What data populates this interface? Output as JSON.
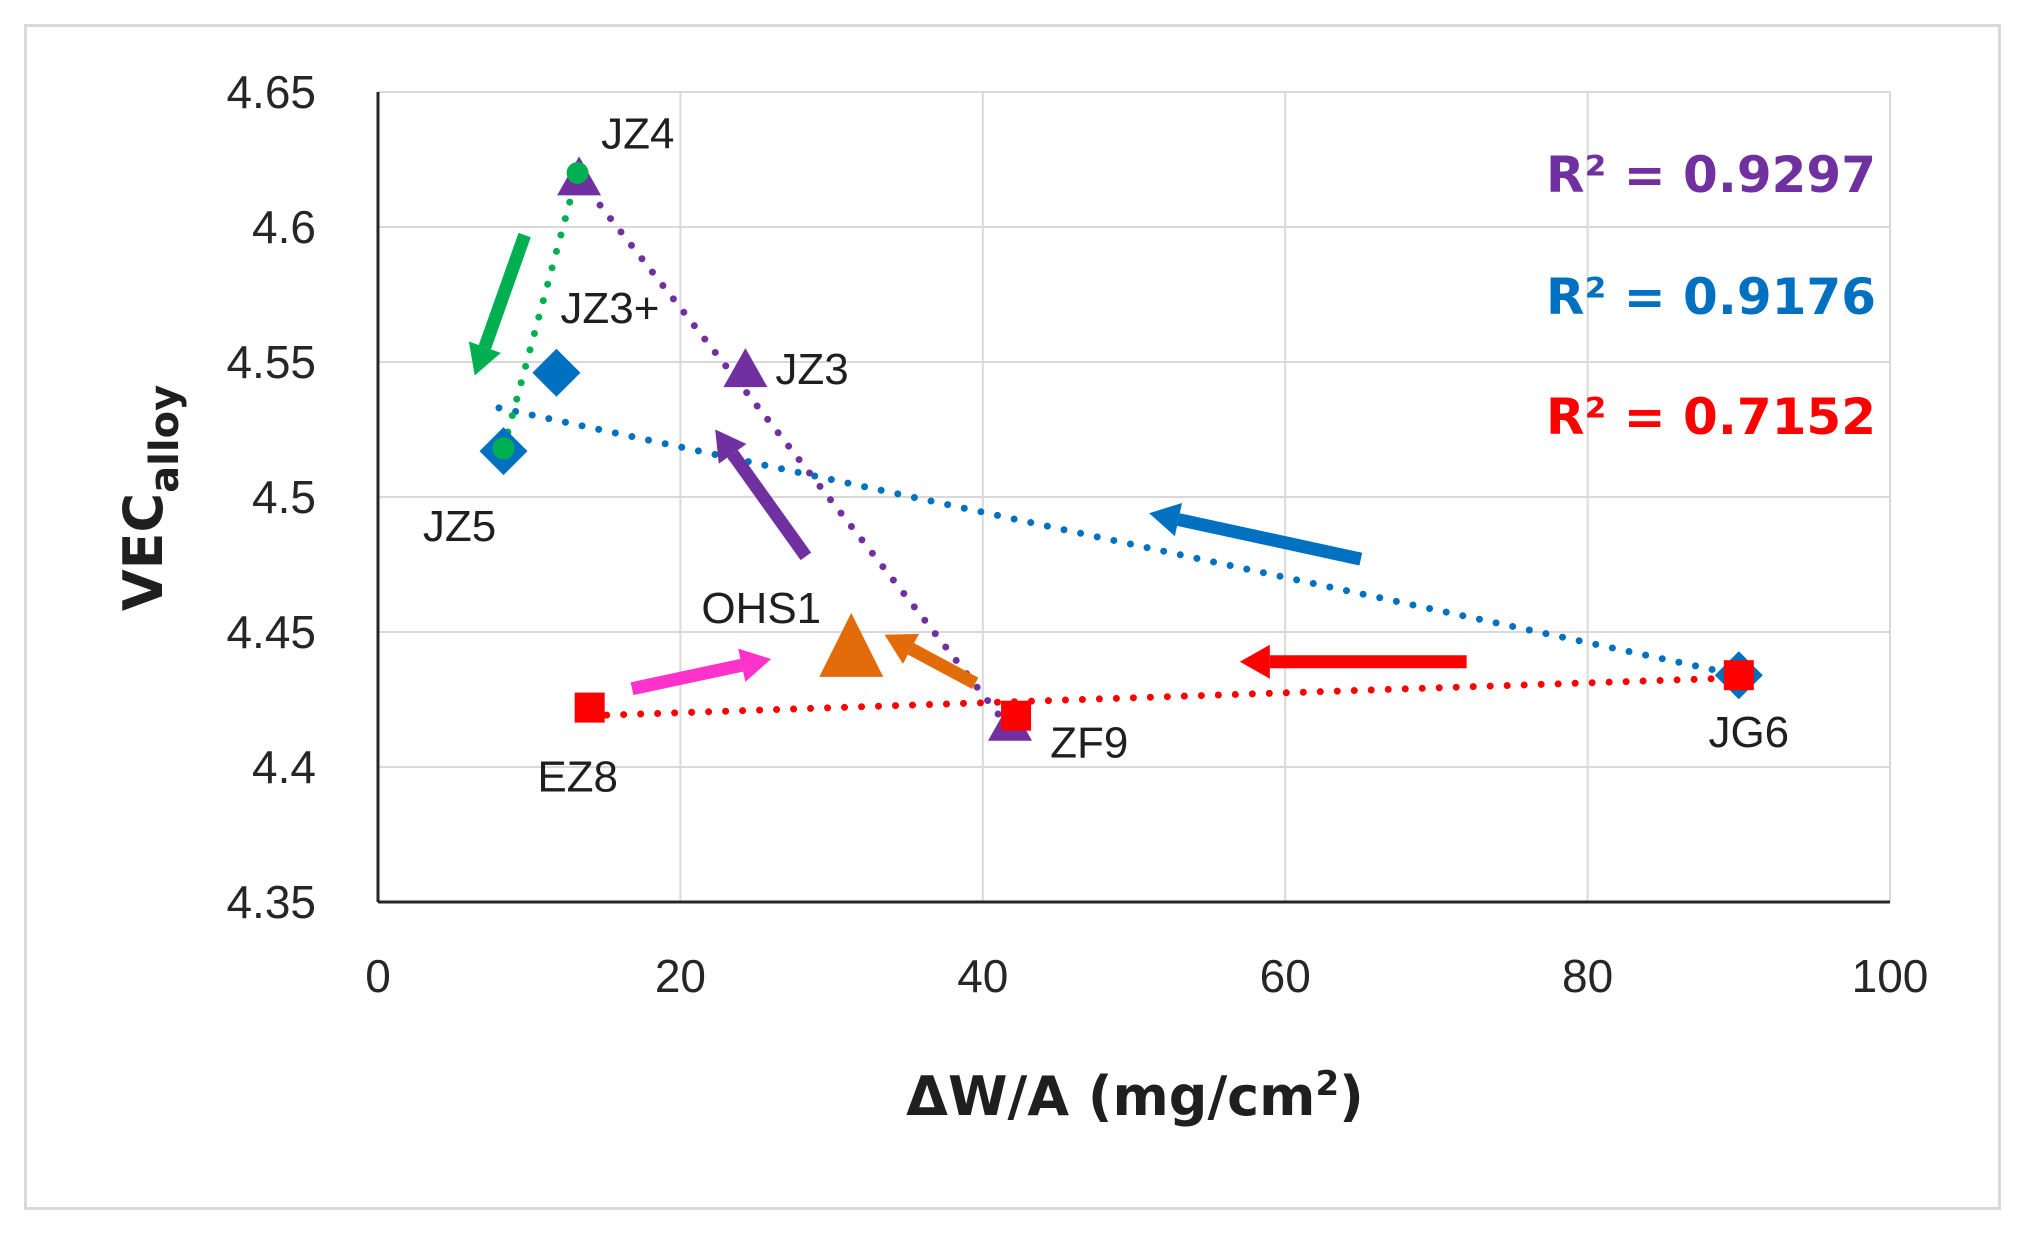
{
  "chart_data": {
    "type": "scatter",
    "xlabel": "ΔW/A (mg/cm",
    "xlabel_sup": "2",
    "xlabel_tail": ")",
    "ylabel": "VEC",
    "ylabel_sub": "alloy",
    "xlim": [
      0,
      100
    ],
    "ylim": [
      4.35,
      4.65
    ],
    "x_ticks": [
      "0",
      "20",
      "40",
      "60",
      "80",
      "100"
    ],
    "y_ticks": [
      "4.35",
      "4.4",
      "4.45",
      "4.5",
      "4.55",
      "4.6",
      "4.65"
    ],
    "x_tick_values": [
      0,
      20,
      40,
      60,
      80,
      100
    ],
    "y_tick_values": [
      4.35,
      4.4,
      4.45,
      4.5,
      4.55,
      4.6,
      4.65
    ],
    "grid": "vertical and horizontal",
    "series": [
      {
        "color": "#7030a0",
        "marker": "triangle",
        "trend": "dotted",
        "points": [
          {
            "x": 13.3,
            "y": 4.618
          },
          {
            "x": 24.3,
            "y": 4.547
          },
          {
            "x": 41.8,
            "y": 4.416
          }
        ]
      },
      {
        "color": "#0070c0",
        "marker": "diamond",
        "trend": "dotted",
        "points": [
          {
            "x": 8.3,
            "y": 4.517
          },
          {
            "x": 11.8,
            "y": 4.546
          },
          {
            "x": 90,
            "y": 4.434
          }
        ]
      },
      {
        "color": "#ff0000",
        "marker": "square",
        "trend": "dotted",
        "points": [
          {
            "x": 14,
            "y": 4.422
          },
          {
            "x": 42.2,
            "y": 4.419
          },
          {
            "x": 90,
            "y": 4.434
          }
        ]
      },
      {
        "color": "#00b050",
        "marker": "circle",
        "trend": "dotted",
        "points": [
          {
            "x": 8.3,
            "y": 4.518
          },
          {
            "x": 13.2,
            "y": 4.62
          }
        ]
      },
      {
        "color": "#e36c0a",
        "marker": "triangle-large",
        "points": [
          {
            "x": 31.3,
            "y": 4.443
          }
        ]
      }
    ],
    "trendlines": [
      {
        "color": "#7030a0",
        "from": [
          13.3,
          4.618
        ],
        "to": [
          41.8,
          4.414
        ]
      },
      {
        "color": "#0070c0",
        "from": [
          8,
          4.533
        ],
        "to": [
          90,
          4.434
        ]
      },
      {
        "color": "#ff0000",
        "from": [
          14,
          4.419
        ],
        "to": [
          90,
          4.433
        ]
      },
      {
        "color": "#00b050",
        "from": [
          8.3,
          4.518
        ],
        "to": [
          13.2,
          4.62
        ]
      }
    ],
    "point_labels": [
      {
        "text": "JZ4",
        "x": 13.3,
        "y": 4.618
      },
      {
        "text": "JZ3+",
        "x": 11.8,
        "y": 4.546
      },
      {
        "text": "JZ3",
        "x": 24.3,
        "y": 4.547
      },
      {
        "text": "JZ5",
        "x": 8.3,
        "y": 4.517
      },
      {
        "text": "OHS1",
        "x": 31.3,
        "y": 4.443
      },
      {
        "text": "EZ8",
        "x": 14,
        "y": 4.422
      },
      {
        "text": "ZF9",
        "x": 42.2,
        "y": 4.419
      },
      {
        "text": "JG6",
        "x": 90,
        "y": 4.434
      }
    ],
    "arrows": [
      {
        "color": "#00b050",
        "from": [
          9.7,
          4.597
        ],
        "to": [
          6.4,
          4.545
        ]
      },
      {
        "color": "#7030a0",
        "from": [
          28.3,
          4.478
        ],
        "to": [
          22.3,
          4.525
        ]
      },
      {
        "color": "#0070c0",
        "from": [
          65,
          4.477
        ],
        "to": [
          51,
          4.494
        ]
      },
      {
        "color": "#ff0000",
        "from": [
          72,
          4.439
        ],
        "to": [
          57,
          4.439
        ]
      },
      {
        "color": "#e36c0a",
        "from": [
          39.5,
          4.431
        ],
        "to": [
          33.5,
          4.449
        ]
      },
      {
        "color": "#ff33cc",
        "from": [
          16.8,
          4.429
        ],
        "to": [
          26,
          4.44
        ]
      }
    ],
    "annotations": [
      {
        "text": "R² = 0.9297",
        "color": "#7030a0"
      },
      {
        "text": "R² = 0.9176",
        "color": "#0070c0"
      },
      {
        "text": "R² = 0.7152",
        "color": "#ff0000"
      }
    ]
  }
}
